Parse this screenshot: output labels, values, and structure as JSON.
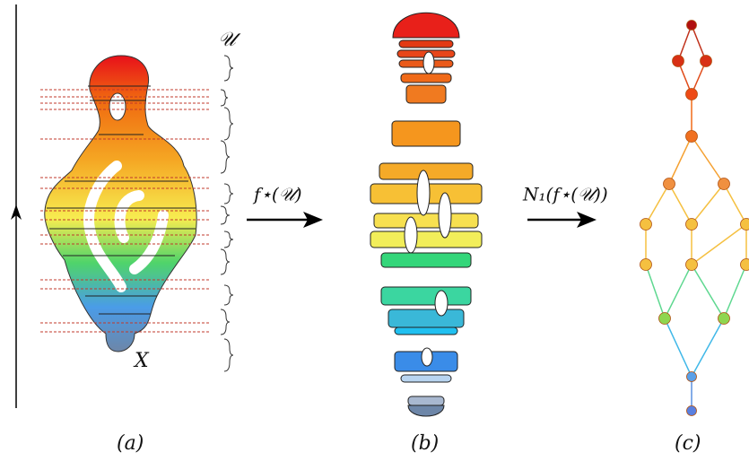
{
  "labels": {
    "cover": "𝒰",
    "space": "X",
    "arrow1": "f⋆(𝒰)",
    "arrow2": "N₁(f⋆(𝒰))",
    "captions": [
      "(a)",
      "(b)",
      "(c)"
    ]
  }
}
